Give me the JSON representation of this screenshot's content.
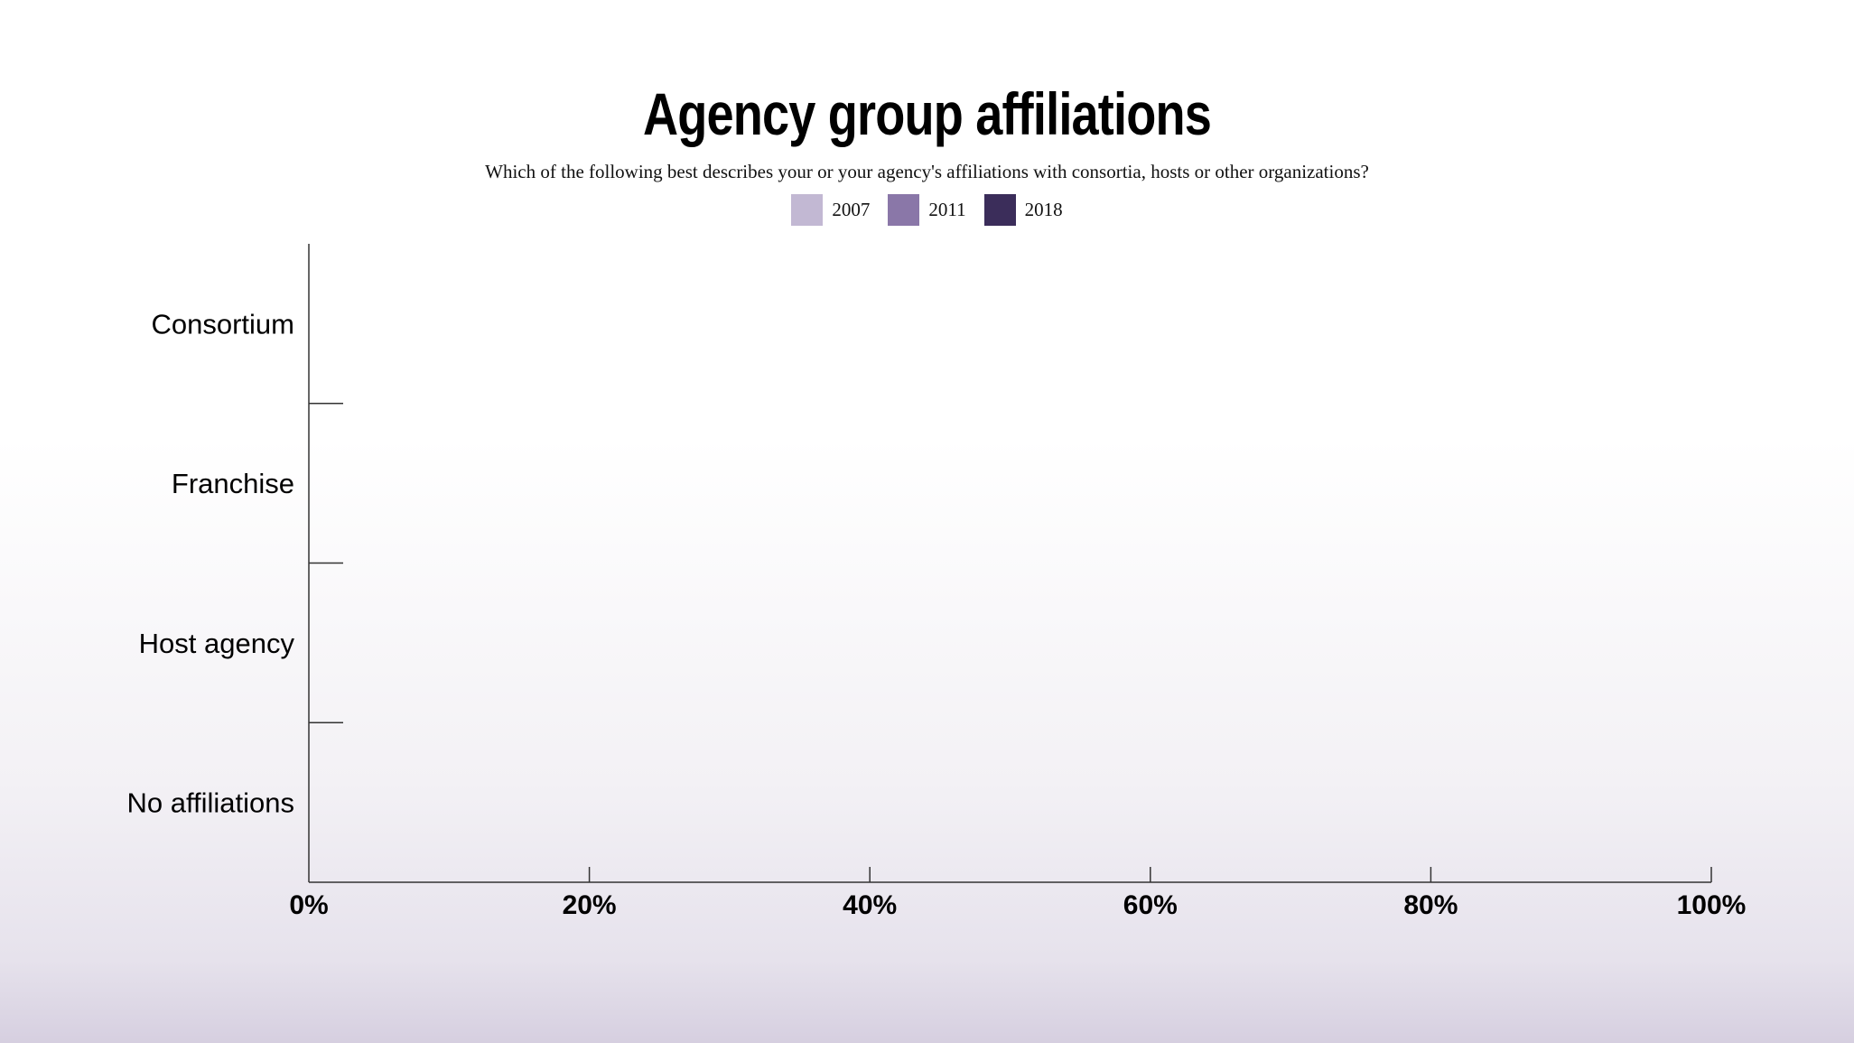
{
  "chart_data": {
    "type": "bar",
    "orientation": "horizontal",
    "title": "Agency group affiliations",
    "subtitle": "Which of the following best describes your or your agency's affiliations with consortia, hosts or other organizations?",
    "categories": [
      "Consortium",
      "Franchise",
      "Host agency",
      "No affiliations"
    ],
    "series": [
      {
        "name": "2007",
        "color": "#c2b8d3",
        "values": [
          null,
          null,
          null,
          null
        ]
      },
      {
        "name": "2011",
        "color": "#8a77a8",
        "values": [
          null,
          null,
          null,
          null
        ]
      },
      {
        "name": "2018",
        "color": "#3b2d5a",
        "values": [
          null,
          null,
          null,
          null
        ]
      }
    ],
    "xlim": [
      0,
      100
    ],
    "x_ticks": [
      0,
      20,
      40,
      60,
      80,
      100
    ],
    "x_tick_labels": [
      "0%",
      "20%",
      "40%",
      "60%",
      "80%",
      "100%"
    ],
    "legend_position": "top-center",
    "grid": false
  }
}
